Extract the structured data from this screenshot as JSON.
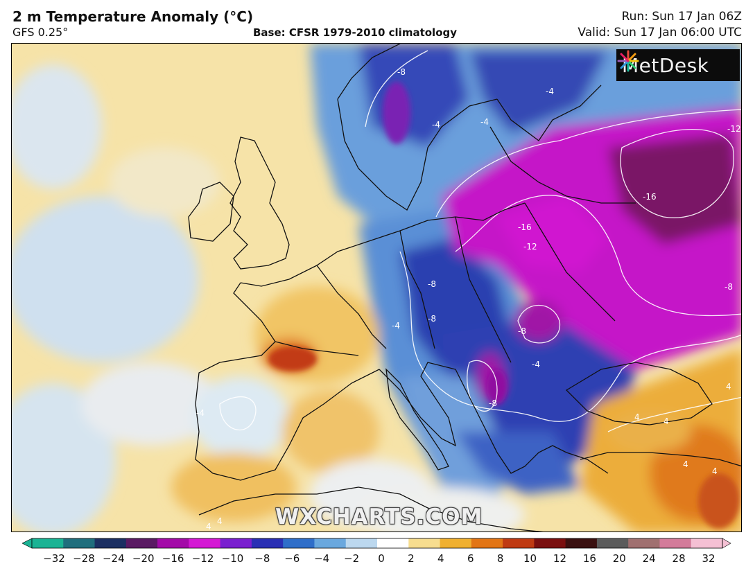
{
  "header": {
    "title": "2 m Temperature Anomaly (°C)",
    "model": "GFS 0.25°",
    "base": "Base: CFSR 1979-2010 climatology",
    "run": "Run: Sun 17 Jan 06Z",
    "valid": "Valid: Sun 17 Jan 06:00 UTC"
  },
  "logo": {
    "text": "MetDesk"
  },
  "watermark": "WXCHARTS.COM",
  "contour_labels": [
    "-8",
    "-4",
    "-4",
    "-4",
    "-12",
    "-16",
    "-16",
    "-12",
    "-8",
    "-8",
    "-8",
    "-8",
    "-4",
    "-4",
    "-8",
    "-4",
    "4",
    "4",
    "4",
    "4",
    "4",
    "4",
    "4"
  ],
  "colorbar": {
    "ticks": [
      "−32",
      "−28",
      "−24",
      "−20",
      "−16",
      "−12",
      "−10",
      "−8",
      "−6",
      "−4",
      "−2",
      "0",
      "2",
      "4",
      "6",
      "8",
      "10",
      "12",
      "16",
      "20",
      "24",
      "28",
      "32"
    ],
    "colors": [
      "#1ab394",
      "#1f6e7d",
      "#1b2f62",
      "#5a1a63",
      "#a30aa8",
      "#d418d4",
      "#7a1fcf",
      "#2a2fb4",
      "#2f6ec9",
      "#6aa8de",
      "#bcd8ef",
      "#ffffff",
      "#f7dd8f",
      "#f0b030",
      "#e27515",
      "#bf3a12",
      "#7a0f0f",
      "#3a1010",
      "#5b5b5b",
      "#a07070",
      "#d37b9a",
      "#f5c0d4"
    ]
  }
}
